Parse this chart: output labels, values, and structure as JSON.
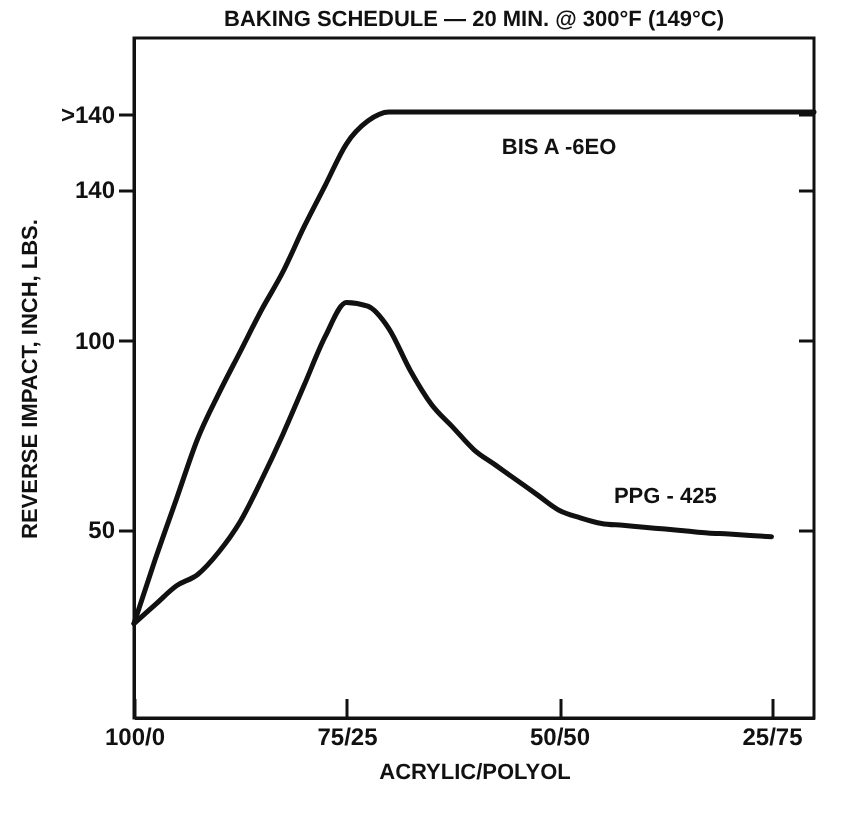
{
  "chart_data": {
    "type": "line",
    "title": "BAKING SCHEDULE — 20 MIN. @ 300°F (149°C)",
    "xlabel": "ACRYLIC/POLYOL",
    "ylabel": "REVERSE IMPACT, INCH, LBS.",
    "categories": [
      "100/0",
      null,
      null,
      null,
      null,
      null,
      null,
      null,
      null,
      null,
      "75/25",
      null,
      null,
      null,
      null,
      null,
      null,
      null,
      null,
      null,
      "50/50",
      null,
      null,
      null,
      null,
      null,
      null,
      null,
      null,
      null,
      "25/75",
      null,
      null
    ],
    "ylim": [
      0,
      180
    ],
    "yticks": [
      50,
      100,
      140,
      {
        "value": 160,
        "label": ">140"
      }
    ],
    "grid": false,
    "legend": false,
    "line_style": "solid",
    "marker": "none",
    "series": [
      {
        "color": "#111111",
        "values": [
          25,
          42,
          58,
          74,
          86,
          97,
          108,
          118,
          130,
          141,
          152,
          158,
          160.4,
          160.4,
          160.4,
          160.4,
          160.4,
          160.4,
          160.4,
          160.4,
          160.4,
          160.4,
          160.4,
          160.4,
          160.4,
          160.4,
          160.4,
          160.4,
          160.4,
          160.4,
          160.4,
          160.4,
          160.4
        ]
      },
      {
        "color": "#111111",
        "values": [
          25,
          30,
          35,
          38,
          44,
          52,
          63,
          75,
          88,
          101,
          110,
          109,
          103,
          92,
          83,
          77,
          71,
          67,
          63,
          59,
          55,
          53,
          51.5,
          51,
          50.5,
          50,
          49.5,
          49,
          48.7,
          48.3,
          48,
          null,
          null
        ]
      }
    ],
    "annotations": [
      "BIS A -6EO",
      "PPG - 425"
    ]
  }
}
